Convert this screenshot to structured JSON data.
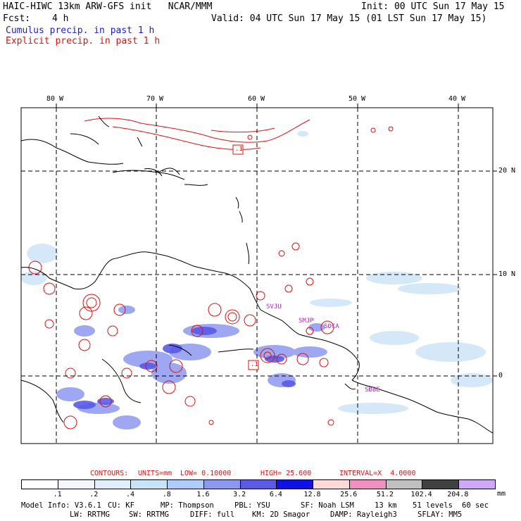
{
  "header": {
    "title_left": "HAIC-HIWC 13km ARW-GFS init   NCAR/MMM",
    "init": "Init: 00 UTC Sun 17 May 15",
    "fcst_label": "Fcst:",
    "fcst_value": "4 h",
    "valid": "Valid: 04 UTC Sun 17 May 15 (01 LST Sun 17 May 15)",
    "legend_cumulus": "Cumulus precip. in past 1 h",
    "legend_explicit": "Explicit precip. in past 1 h"
  },
  "map": {
    "lon_labels": [
      "80 W",
      "70 W",
      "60 W",
      "50 W",
      "40 W"
    ],
    "lat_labels": [
      "20 N",
      "10 N",
      "0"
    ],
    "stations": [
      {
        "id": "SVJU"
      },
      {
        "id": "SMJP"
      },
      {
        "id": "SOCA"
      },
      {
        "id": "SBBE"
      }
    ],
    "contour_labels": [
      ".1",
      ".1"
    ],
    "colors": {
      "coast": "#000000",
      "explicit": "#e01010",
      "cumulus_dark": "#3030e0",
      "cumulus_mid": "#8090f0",
      "cumulus_light": "#d0e6f8",
      "station": "#c020c0"
    }
  },
  "contours_line": {
    "prefix": "CONTOURS:",
    "units": "UNITS=mm",
    "low": "LOW= 0.10000",
    "high": "HIGH= 25.600",
    "interval": "INTERVAL=X  4.0000"
  },
  "colorbar": {
    "colors": [
      "#ffffff",
      "#f2f8fd",
      "#dfeefa",
      "#c8e4f8",
      "#b0ccf8",
      "#8c98f0",
      "#5a5ae8",
      "#1010e8",
      "#ffd8d8",
      "#f090c0",
      "#c0c0c0",
      "#404040",
      "#d0a8f8"
    ],
    "labels": [
      ".1",
      ".2",
      ".4",
      ".8",
      "1.6",
      "3.2",
      "6.4",
      "12.8",
      "25.6",
      "51.2",
      "102.4",
      "204.8"
    ],
    "unit": "mm"
  },
  "model_info": {
    "line1": [
      "Model Info: V3.6.1",
      "CU: KF",
      "MP: Thompson",
      "PBL: YSU",
      "SF: Noah LSM",
      "13 km",
      "51 levels",
      "60 sec"
    ],
    "line2": [
      "LW: RRTMG",
      "SW: RRTMG",
      "DIFF: full",
      "KM: 2D Smagor",
      "DAMP: Rayleigh3",
      "SFLAY: MM5"
    ]
  }
}
